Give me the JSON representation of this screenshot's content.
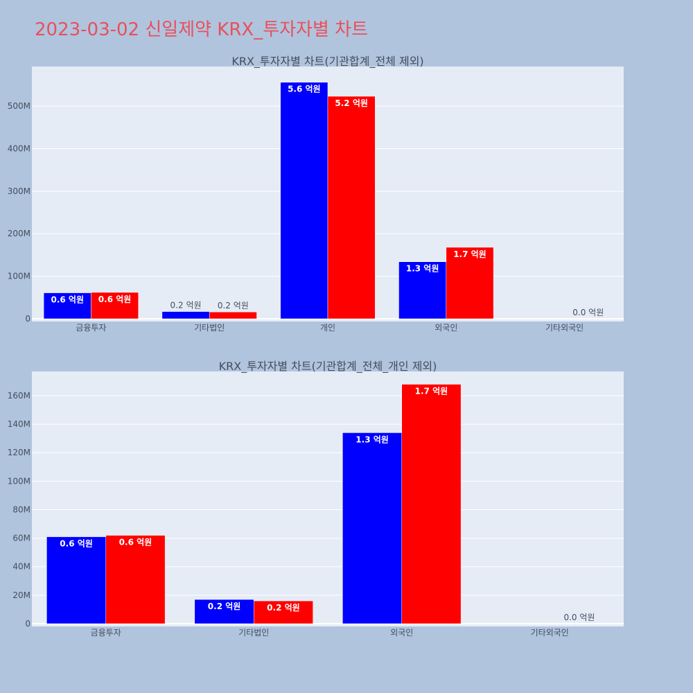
{
  "page": {
    "title": "2023-03-02 신일제약 KRX_투자자별 차트"
  },
  "colors": {
    "background": "#b0c4de",
    "plot_bg": "#e5ecf6",
    "buy": "#0000ff",
    "sell": "#ff0000",
    "title": "#e8505b"
  },
  "chart_data": [
    {
      "type": "bar",
      "title": "KRX_투자자별 차트(기관합계_전체 제외)",
      "categories": [
        "금융투자",
        "기타법인",
        "개인",
        "외국인",
        "기타외국인"
      ],
      "series": [
        {
          "color": "#0000ff",
          "values": [
            61000000,
            17000000,
            556000000,
            134000000,
            0
          ],
          "labels": [
            "0.6 억원",
            "0.2 억원",
            "5.6 억원",
            "1.3 억원",
            ""
          ]
        },
        {
          "color": "#ff0000",
          "values": [
            62000000,
            16000000,
            523000000,
            168000000,
            0
          ],
          "labels": [
            "0.6 억원",
            "0.2 억원",
            "5.2 억원",
            "1.7 억원",
            "0.0 억원"
          ]
        }
      ],
      "yticks": [
        0,
        100000000,
        200000000,
        300000000,
        400000000,
        500000000
      ],
      "ytick_labels": [
        "0",
        "100M",
        "200M",
        "300M",
        "400M",
        "500M"
      ],
      "ylim": [
        0,
        593000000
      ],
      "grid": true,
      "legend": "none"
    },
    {
      "type": "bar",
      "title": "KRX_투자자별 차트(기관합계_전체_개인 제외)",
      "categories": [
        "금융투자",
        "기타법인",
        "외국인",
        "기타외국인"
      ],
      "series": [
        {
          "color": "#0000ff",
          "values": [
            61000000,
            17000000,
            134000000,
            0
          ],
          "labels": [
            "0.6 억원",
            "0.2 억원",
            "1.3 억원",
            ""
          ]
        },
        {
          "color": "#ff0000",
          "values": [
            62000000,
            16000000,
            168000000,
            0
          ],
          "labels": [
            "0.6 억원",
            "0.2 억원",
            "1.7 억원",
            "0.0 억원"
          ]
        }
      ],
      "yticks": [
        0,
        20000000,
        40000000,
        60000000,
        80000000,
        100000000,
        120000000,
        140000000,
        160000000
      ],
      "ytick_labels": [
        "0",
        "20M",
        "40M",
        "60M",
        "80M",
        "100M",
        "120M",
        "140M",
        "160M"
      ],
      "ylim": [
        0,
        177000000
      ],
      "grid": true,
      "legend": "none"
    }
  ]
}
